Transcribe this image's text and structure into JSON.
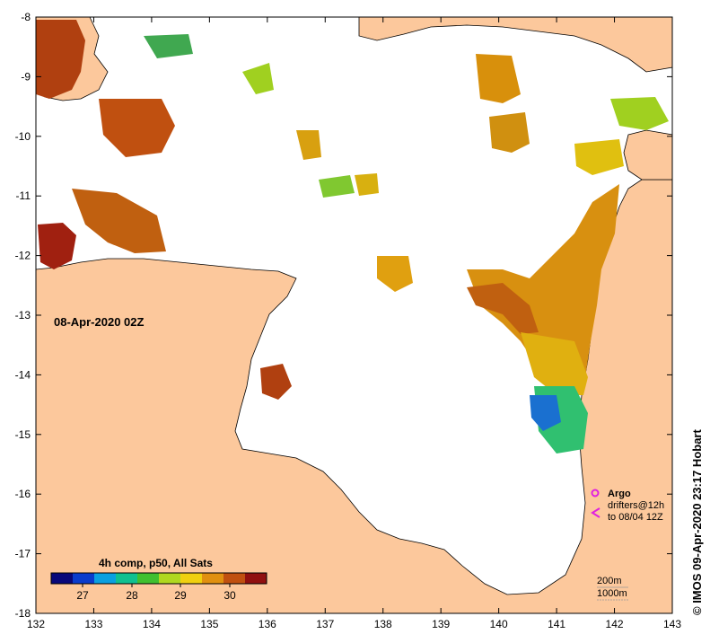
{
  "map": {
    "date_label": "08-Apr-2020 02Z",
    "lon_ticks": [
      "132",
      "133",
      "134",
      "135",
      "136",
      "137",
      "138",
      "139",
      "140",
      "141",
      "142",
      "143"
    ],
    "lat_ticks": [
      "-8",
      "-9",
      "-10",
      "-11",
      "-12",
      "-13",
      "-14",
      "-15",
      "-16",
      "-17",
      "-18"
    ],
    "colors": {
      "land": "#fcc89c",
      "ocean": "#ffffff",
      "coast": "#000000"
    }
  },
  "colorbar": {
    "title": "4h comp, p50, All Sats",
    "labels": [
      "27",
      "28",
      "29",
      "30"
    ],
    "colors": [
      "#08087a",
      "#0a3ccc",
      "#0aa0e0",
      "#10c090",
      "#40c030",
      "#b0d820",
      "#f0d010",
      "#e09010",
      "#c05010",
      "#901010"
    ]
  },
  "legend": {
    "argo_label": "Argo",
    "drifters_label": "drifters@12h",
    "drifters_to": "to 08/04 12Z",
    "depth_200": "200m",
    "depth_1000": "1000m",
    "argo_color": "#e020e0"
  },
  "credit": "© IMOS 09-Apr-2020 23:17 Hobart"
}
